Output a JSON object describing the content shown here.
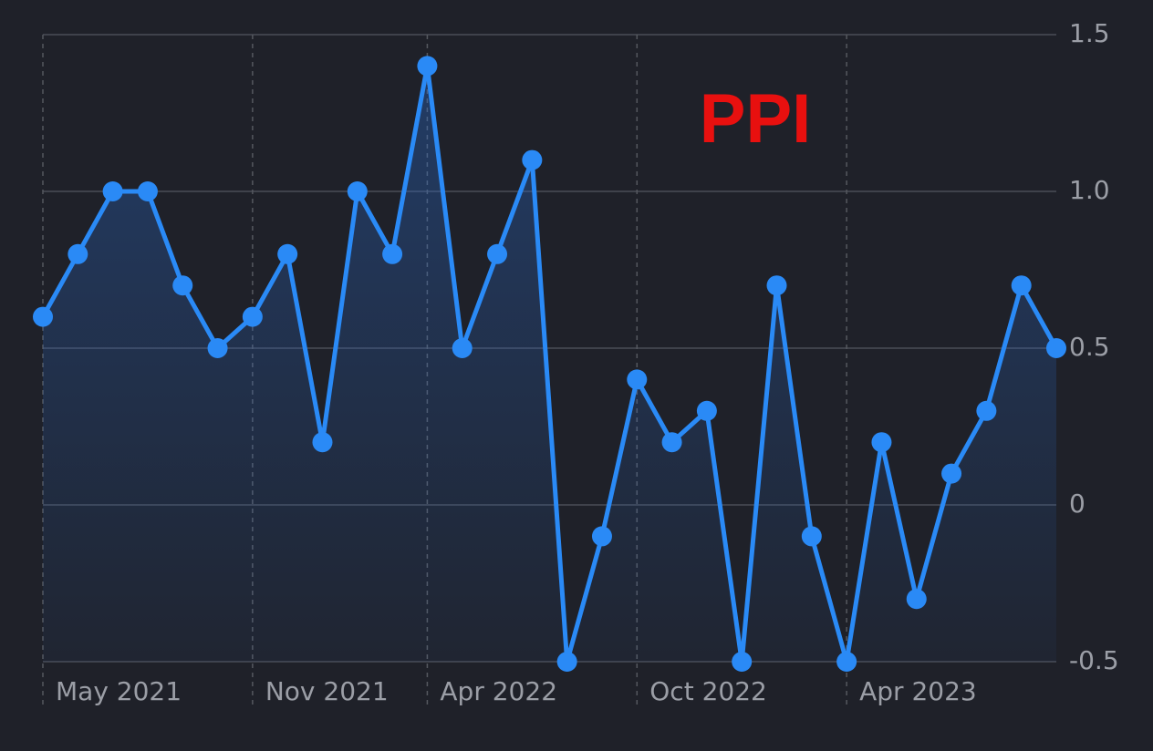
{
  "chart_data": {
    "type": "area-line",
    "title": "PPI",
    "x": [
      "2021-05",
      "2021-06",
      "2021-07",
      "2021-08",
      "2021-09",
      "2021-10",
      "2021-11",
      "2021-12",
      "2022-01",
      "2022-02",
      "2022-03",
      "2022-04",
      "2022-05",
      "2022-06",
      "2022-07",
      "2022-08",
      "2022-09",
      "2022-10",
      "2022-11",
      "2022-12",
      "2023-01",
      "2023-02",
      "2023-03",
      "2023-04",
      "2023-05",
      "2023-06",
      "2023-07",
      "2023-08",
      "2023-09",
      "2023-10"
    ],
    "series": [
      {
        "name": "PPI",
        "color": "#2a8af6",
        "values": [
          0.6,
          0.8,
          1.0,
          1.0,
          0.7,
          0.5,
          0.6,
          0.8,
          0.2,
          1.0,
          0.8,
          1.4,
          0.5,
          0.8,
          1.1,
          -0.5,
          -0.1,
          0.4,
          0.2,
          0.3,
          -0.5,
          0.7,
          -0.1,
          -0.5,
          0.2,
          -0.3,
          0.1,
          0.3,
          0.7,
          0.5
        ]
      }
    ],
    "xlim": [
      "2021-05",
      "2023-10"
    ],
    "xticks": [
      {
        "value": "2021-05",
        "label": "May 2021"
      },
      {
        "value": "2021-11",
        "label": "Nov 2021"
      },
      {
        "value": "2022-04",
        "label": "Apr 2022"
      },
      {
        "value": "2022-10",
        "label": "Oct 2022"
      },
      {
        "value": "2023-04",
        "label": "Apr 2023"
      }
    ],
    "ylim": [
      -0.5,
      1.5
    ],
    "yticks": [
      -0.5,
      0,
      0.5,
      {
        "value": 1,
        "label": "1.0"
      },
      1.5
    ],
    "grid": true
  }
}
